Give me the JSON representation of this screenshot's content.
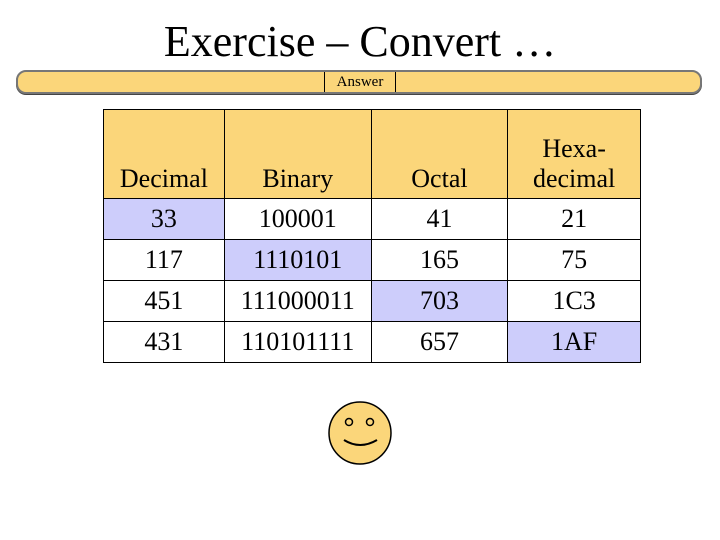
{
  "slide": {
    "title": "Exercise – Convert …",
    "answer_label": "Answer"
  },
  "table": {
    "headers": [
      "Decimal",
      "Binary",
      "Octal",
      "Hexa-\ndecimal"
    ],
    "rows": [
      [
        "33",
        "100001",
        "41",
        "21"
      ],
      [
        "117",
        "1110101",
        "165",
        "75"
      ],
      [
        "451",
        "111000011",
        "703",
        "1C3"
      ],
      [
        "431",
        "110101111",
        "657",
        "1AF"
      ]
    ]
  },
  "colors": {
    "header_fill": "#fbd67a",
    "highlight_fill": "#cdcdfb",
    "smiley_fill": "#fbd67a"
  },
  "icons": {
    "smiley": "smiley-face-icon"
  }
}
